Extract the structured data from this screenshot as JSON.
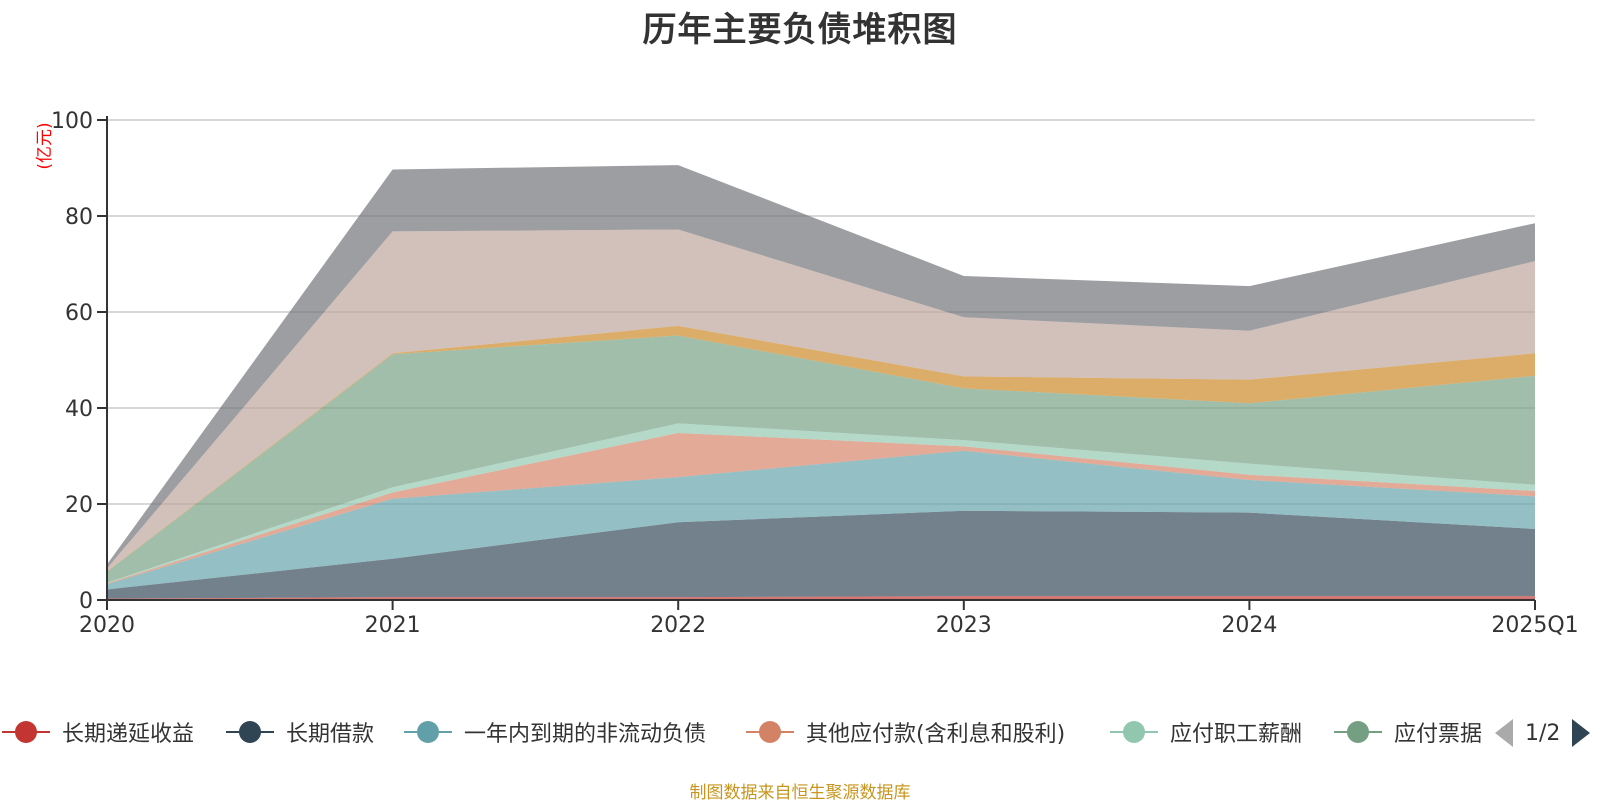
{
  "chart_data": {
    "type": "area",
    "stacked": true,
    "title": "历年主要负债堆积图",
    "ylabel": "(亿元)",
    "xlabel": "",
    "categories": [
      "2020",
      "2021",
      "2022",
      "2023",
      "2024",
      "2025Q1"
    ],
    "ylim": [
      0,
      100
    ],
    "yticks": [
      0,
      20,
      40,
      60,
      80,
      100
    ],
    "grid": true,
    "series": [
      {
        "name": "长期递延收益",
        "color": "#c23531",
        "values": [
          0.3,
          0.6,
          0.6,
          0.8,
          0.8,
          0.8
        ]
      },
      {
        "name": "长期借款",
        "color": "#2f4554",
        "values": [
          1.9,
          8.0,
          15.6,
          17.8,
          17.4,
          14.0
        ]
      },
      {
        "name": "一年内到期的非流动负债",
        "color": "#61a0a8",
        "values": [
          1.1,
          12.5,
          9.4,
          12.5,
          6.8,
          6.8
        ]
      },
      {
        "name": "其他应付款(含利息和股利)",
        "color": "#d48265",
        "values": [
          0.2,
          1.3,
          9.2,
          0.9,
          1.1,
          1.1
        ]
      },
      {
        "name": "应付职工薪酬",
        "color": "#91c7ae",
        "values": [
          0.1,
          1.1,
          2.0,
          1.3,
          2.3,
          1.3
        ]
      },
      {
        "name": "应付票据",
        "color": "#749f83",
        "values": [
          2.3,
          27.7,
          18.3,
          10.8,
          12.6,
          22.7
        ]
      },
      {
        "name": "",
        "color": "#ca8622",
        "values": [
          0.1,
          0.2,
          2.0,
          2.5,
          4.9,
          4.7
        ]
      },
      {
        "name": "",
        "color": "#bda29a",
        "values": [
          0.6,
          25.4,
          20.1,
          12.3,
          10.2,
          19.2
        ]
      },
      {
        "name": "",
        "color": "#6e7074",
        "values": [
          0.8,
          12.9,
          13.4,
          8.6,
          9.3,
          7.9
        ]
      }
    ]
  },
  "legend": {
    "pager_text": "1/2"
  },
  "source_note": "制图数据来自恒生聚源数据库",
  "colors": {
    "axis": "#333333",
    "grid": "#cccccc",
    "unit_label": "#ff0000",
    "source_note": "#c8961e"
  }
}
